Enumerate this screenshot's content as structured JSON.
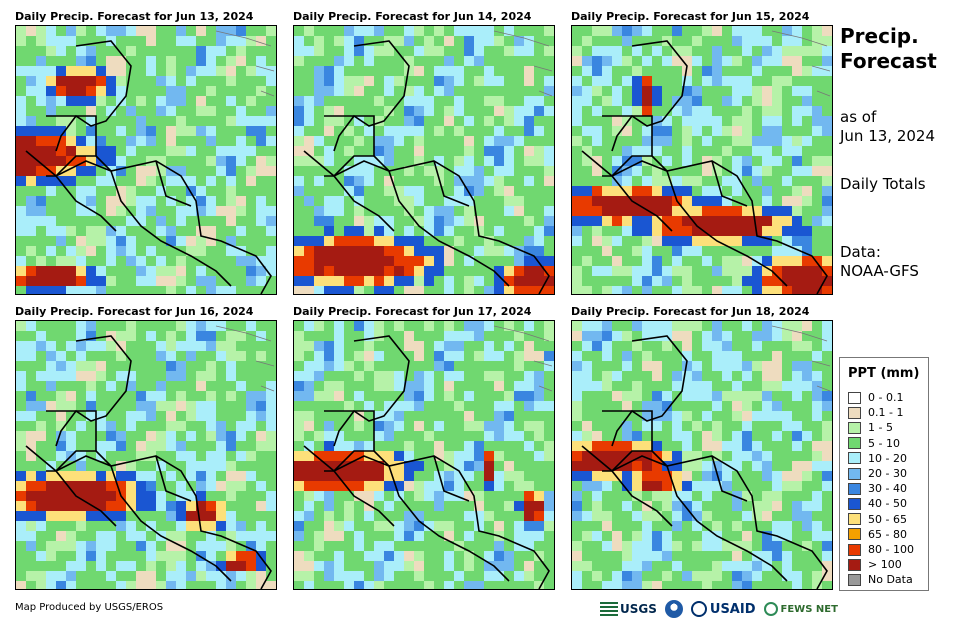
{
  "panels": [
    {
      "title": "Daily Precip. Forecast for Jun 13, 2024",
      "seed": 13,
      "heavy": [
        [
          0.0,
          0.47,
          0.3,
          0.1
        ],
        [
          0.22,
          0.2,
          0.12,
          0.06
        ],
        [
          0.12,
          0.92,
          0.18,
          0.05
        ]
      ]
    },
    {
      "title": "Daily Precip. Forecast for Jun 14, 2024",
      "seed": 14,
      "heavy": [
        [
          0.22,
          0.86,
          0.3,
          0.1
        ],
        [
          0.9,
          0.93,
          0.15,
          0.07
        ]
      ]
    },
    {
      "title": "Daily Precip. Forecast for Jun 15, 2024",
      "seed": 15,
      "heavy": [
        [
          0.2,
          0.65,
          0.3,
          0.07
        ],
        [
          0.55,
          0.72,
          0.3,
          0.07
        ],
        [
          0.88,
          0.93,
          0.2,
          0.09
        ],
        [
          0.27,
          0.24,
          0.04,
          0.08
        ]
      ]
    },
    {
      "title": "Daily Precip. Forecast for Jun 16, 2024",
      "seed": 16,
      "heavy": [
        [
          0.2,
          0.63,
          0.28,
          0.09
        ],
        [
          0.7,
          0.7,
          0.08,
          0.06
        ],
        [
          0.85,
          0.88,
          0.08,
          0.04
        ]
      ]
    },
    {
      "title": "Daily Precip. Forecast for Jun 17, 2024",
      "seed": 17,
      "heavy": [
        [
          0.15,
          0.54,
          0.28,
          0.08
        ],
        [
          0.73,
          0.53,
          0.03,
          0.07
        ],
        [
          0.9,
          0.68,
          0.05,
          0.06
        ]
      ]
    },
    {
      "title": "Daily Precip. Forecast for Jun 18, 2024",
      "seed": 18,
      "heavy": [
        [
          0.12,
          0.5,
          0.25,
          0.07
        ],
        [
          0.3,
          0.58,
          0.12,
          0.04
        ]
      ]
    }
  ],
  "sidebar": {
    "title_line1": "Precip.",
    "title_line2": "Forecast",
    "asof_line1": "as of",
    "asof_line2": "Jun 13, 2024",
    "totals": "Daily Totals",
    "data_line1": "Data:",
    "data_line2": "NOAA-GFS"
  },
  "legend": {
    "title": "PPT (mm)",
    "items": [
      {
        "label": "0 - 0.1",
        "color": "#ffffff"
      },
      {
        "label": "0.1 - 1",
        "color": "#eedcbf"
      },
      {
        "label": "1 - 5",
        "color": "#b6f2a8"
      },
      {
        "label": "5 - 10",
        "color": "#70d870"
      },
      {
        "label": "10 - 20",
        "color": "#aaeefa"
      },
      {
        "label": "20 - 30",
        "color": "#72b8f0"
      },
      {
        "label": "30 - 40",
        "color": "#3a86e0"
      },
      {
        "label": "40 - 50",
        "color": "#1a56d2"
      },
      {
        "label": "50 - 65",
        "color": "#fde07a"
      },
      {
        "label": "65 - 80",
        "color": "#f5a000"
      },
      {
        "label": "80 - 100",
        "color": "#e83a00"
      },
      {
        "label": "> 100",
        "color": "#a51b12"
      },
      {
        "label": "No Data",
        "color": "#999999"
      }
    ]
  },
  "footer": {
    "credit": "Map Produced by USGS/EROS",
    "logo_usgs": "USGS",
    "logo_usaid": "USAID",
    "logo_fews": "FEWS NET"
  }
}
